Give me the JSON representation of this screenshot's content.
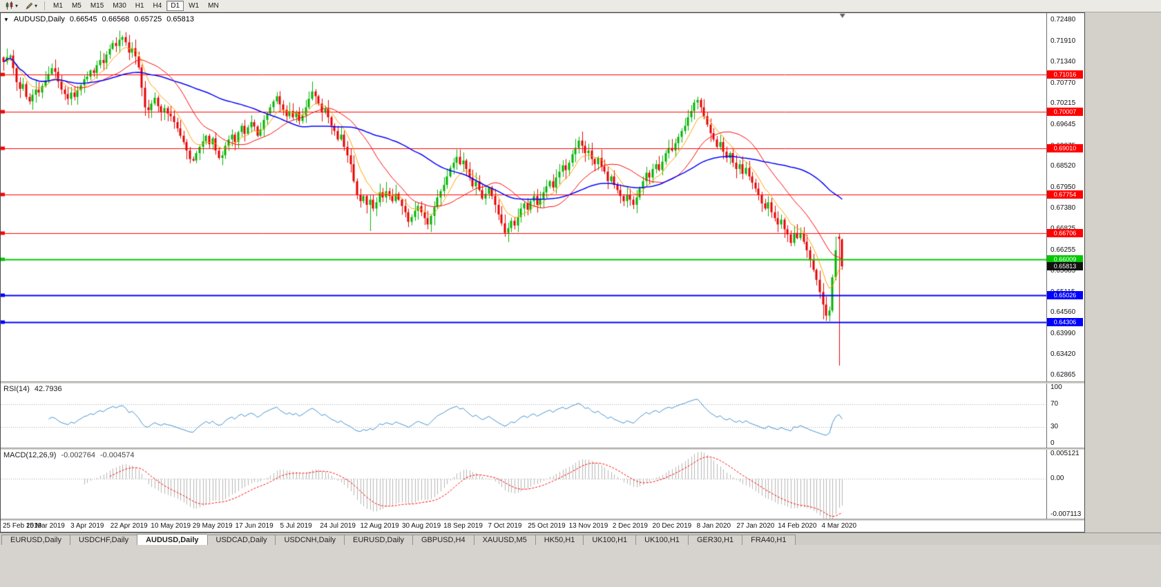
{
  "toolbar": {
    "timeframes": [
      "M1",
      "M5",
      "M15",
      "M30",
      "H1",
      "H4",
      "D1",
      "W1",
      "MN"
    ],
    "active_timeframe": "D1"
  },
  "chart": {
    "symbol": "AUDUSD,Daily",
    "ohlc": {
      "open": "0.66545",
      "high": "0.66568",
      "low": "0.65725",
      "close": "0.65813"
    },
    "price_scale": [
      "0.72480",
      "0.71910",
      "0.71340",
      "0.70770",
      "0.70215",
      "0.69645",
      "0.69075",
      "0.68520",
      "0.67950",
      "0.67380",
      "0.66825",
      "0.66255",
      "0.65685",
      "0.65115",
      "0.64560",
      "0.63990",
      "0.63420",
      "0.62865"
    ],
    "current_price": "0.65813",
    "current_color": "#111111",
    "levels": [
      {
        "label": "0.71016",
        "price": 0.71016,
        "color": "#FF0000",
        "width": 1
      },
      {
        "label": "0.70007",
        "price": 0.70007,
        "color": "#FF0000",
        "width": 1
      },
      {
        "label": "0.69010",
        "price": 0.6901,
        "color": "#FF0000",
        "width": 1
      },
      {
        "label": "0.67754",
        "price": 0.67754,
        "color": "#FF0000",
        "width": 1
      },
      {
        "label": "0.66706",
        "price": 0.66706,
        "color": "#FF0000",
        "width": 1
      },
      {
        "label": "0.66009",
        "price": 0.66009,
        "color": "#00C800",
        "width": 2
      },
      {
        "label": "0.65026",
        "price": 0.65026,
        "color": "#0000FF",
        "width": 2
      },
      {
        "label": "0.64306",
        "price": 0.64306,
        "color": "#0000FF",
        "width": 2
      }
    ]
  },
  "rsi": {
    "label": "RSI(14)",
    "value": "42.7936",
    "scale": [
      "100",
      "70",
      "30",
      "0"
    ],
    "levels": [
      70,
      30
    ]
  },
  "macd": {
    "label": "MACD(12,26,9)",
    "value1": "-0.002764",
    "value2": "-0.004574",
    "scale": [
      "0.005121",
      "0.00",
      "-0.007113"
    ]
  },
  "dates": [
    "25 Feb 2019",
    "15 Mar 2019",
    "3 Apr 2019",
    "22 Apr 2019",
    "10 May 2019",
    "29 May 2019",
    "17 Jun 2019",
    "5 Jul 2019",
    "24 Jul 2019",
    "12 Aug 2019",
    "30 Aug 2019",
    "18 Sep 2019",
    "7 Oct 2019",
    "25 Oct 2019",
    "13 Nov 2019",
    "2 Dec 2019",
    "20 Dec 2019",
    "8 Jan 2020",
    "27 Jan 2020",
    "14 Feb 2020",
    "4 Mar 2020"
  ],
  "tabs": [
    {
      "label": "EURUSD,Daily",
      "active": false
    },
    {
      "label": "USDCHF,Daily",
      "active": false
    },
    {
      "label": "AUDUSD,Daily",
      "active": true
    },
    {
      "label": "USDCAD,Daily",
      "active": false
    },
    {
      "label": "USDCNH,Daily",
      "active": false
    },
    {
      "label": "EURUSD,Daily",
      "active": false
    },
    {
      "label": "GBPUSD,H4",
      "active": false
    },
    {
      "label": "XAUUSD,M5",
      "active": false
    },
    {
      "label": "HK50,H1",
      "active": false
    },
    {
      "label": "UK100,H1",
      "active": false
    },
    {
      "label": "UK100,H1",
      "active": false
    },
    {
      "label": "GER30,H1",
      "active": false
    },
    {
      "label": "FRA40,H1",
      "active": false
    }
  ],
  "chart_data": {
    "type": "candlestick",
    "symbol": "AUDUSD",
    "timeframe": "Daily",
    "title": "AUDUSD,Daily 0.66545 0.66568 0.65725 0.65813",
    "price_range": [
      0.627,
      0.7267
    ],
    "rsi_range": [
      -8,
      108
    ],
    "macd_range": [
      -0.0078,
      0.0056
    ],
    "bars_fraction": 0.805,
    "x_label_step": 13,
    "indicators": {
      "ma_fast": 8,
      "ma_mid": 20,
      "ma_slow": 50,
      "rsi": 14,
      "macd": [
        12,
        26,
        9
      ]
    },
    "colors": {
      "up": "#00B400",
      "down": "#E60000",
      "ma_fast": "#FFA200",
      "ma_mid": "#FF0000",
      "ma_slow": "#0000FF",
      "rsi": "#4090D0",
      "macd_hist": "#B4B4B4",
      "macd_signal": "#FF0000"
    },
    "closes": [
      0.7135,
      0.7148,
      0.7152,
      0.7118,
      0.708,
      0.7062,
      0.7075,
      0.704,
      0.7028,
      0.7046,
      0.706,
      0.7052,
      0.707,
      0.7085,
      0.7102,
      0.7118,
      0.7108,
      0.7082,
      0.706,
      0.7048,
      0.7035,
      0.7052,
      0.704,
      0.7058,
      0.7072,
      0.7088,
      0.7095,
      0.7112,
      0.7105,
      0.7126,
      0.714,
      0.7132,
      0.7155,
      0.717,
      0.7186,
      0.7178,
      0.7195,
      0.7202,
      0.7188,
      0.716,
      0.7172,
      0.715,
      0.712,
      0.7065,
      0.7012,
      0.7004,
      0.7022,
      0.7038,
      0.7015,
      0.6998,
      0.701,
      0.6995,
      0.6988,
      0.6972,
      0.6955,
      0.6935,
      0.6918,
      0.6895,
      0.6872,
      0.6868,
      0.6888,
      0.6905,
      0.692,
      0.6935,
      0.6912,
      0.6928,
      0.6895,
      0.6875,
      0.6882,
      0.6908,
      0.6925,
      0.6938,
      0.6918,
      0.6945,
      0.6962,
      0.694,
      0.6958,
      0.6972,
      0.696,
      0.6935,
      0.6952,
      0.6978,
      0.6995,
      0.7012,
      0.7028,
      0.7042,
      0.702,
      0.7005,
      0.6988,
      0.7002,
      0.6985,
      0.6998,
      0.6975,
      0.699,
      0.7012,
      0.7035,
      0.7055,
      0.7042,
      0.7022,
      0.6998,
      0.7008,
      0.6985,
      0.6962,
      0.6948,
      0.6925,
      0.6938,
      0.6905,
      0.6882,
      0.6858,
      0.6812,
      0.6775,
      0.6758,
      0.6772,
      0.6748,
      0.6762,
      0.6738,
      0.6755,
      0.6782,
      0.6768,
      0.6785,
      0.6772,
      0.6758,
      0.6778,
      0.6762,
      0.6745,
      0.6728,
      0.6702,
      0.6715,
      0.6732,
      0.6745,
      0.6728,
      0.6712,
      0.6695,
      0.6718,
      0.6742,
      0.6768,
      0.6785,
      0.6802,
      0.6825,
      0.6848,
      0.6862,
      0.6878,
      0.6858,
      0.6868,
      0.6845,
      0.6822,
      0.6798,
      0.6812,
      0.6788,
      0.6765,
      0.6778,
      0.6795,
      0.6772,
      0.6748,
      0.6722,
      0.6698,
      0.6672,
      0.6685,
      0.6705,
      0.6692,
      0.6715,
      0.6738,
      0.6752,
      0.6735,
      0.6758,
      0.6772,
      0.6748,
      0.6765,
      0.6782,
      0.6798,
      0.6812,
      0.6795,
      0.6822,
      0.6838,
      0.6855,
      0.6842,
      0.6862,
      0.6885,
      0.6902,
      0.6922,
      0.6908,
      0.6888,
      0.6895,
      0.6872,
      0.6858,
      0.6875,
      0.6852,
      0.6838,
      0.6812,
      0.6825,
      0.6802,
      0.6788,
      0.6772,
      0.6758,
      0.6775,
      0.6762,
      0.6748,
      0.6768,
      0.6792,
      0.6812,
      0.6835,
      0.6822,
      0.6845,
      0.6858,
      0.6842,
      0.6865,
      0.6888,
      0.6902,
      0.6895,
      0.6915,
      0.6932,
      0.6948,
      0.6962,
      0.6985,
      0.7002,
      0.7025,
      0.7032,
      0.7012,
      0.6988,
      0.6965,
      0.6942,
      0.6925,
      0.6905,
      0.6918,
      0.6892,
      0.6875,
      0.6888,
      0.6862,
      0.6845,
      0.6858,
      0.6832,
      0.6848,
      0.6825,
      0.6808,
      0.6792,
      0.6775,
      0.6752,
      0.6738,
      0.6755,
      0.6728,
      0.6712,
      0.6695,
      0.6708,
      0.6682,
      0.6668,
      0.6645,
      0.6672,
      0.6658,
      0.6672,
      0.6648,
      0.6625,
      0.6598,
      0.6572,
      0.6545,
      0.6512,
      0.6478,
      0.6448,
      0.6462,
      0.6552,
      0.6625,
      0.6655,
      0.6581
    ],
    "overrides": {
      "37": {
        "high": 0.7207
      },
      "59": {
        "low": 0.6865
      },
      "96": {
        "high": 0.7082
      },
      "114": {
        "low": 0.6677
      },
      "216": {
        "high": 0.7041
      },
      "255": {
        "low": 0.6438
      },
      "256": {
        "low": 0.6434
      },
      "259": {
        "high": 0.6662
      },
      "260": {
        "open": 0.6662,
        "high": 0.6671,
        "low": 0.6313,
        "close": 0.6656
      },
      "261": {
        "open": 0.66545,
        "high": 0.66568,
        "low": 0.65725,
        "close": 0.65813
      }
    }
  }
}
